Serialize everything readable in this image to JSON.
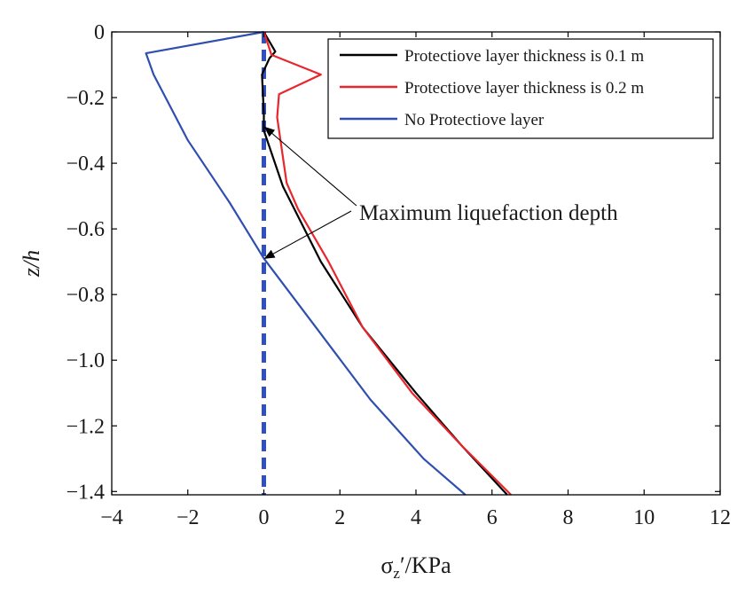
{
  "chart_data": {
    "type": "line",
    "xlabel": "σz′/KPa",
    "xlabel_main": "σ",
    "xlabel_sub": "z",
    "xlabel_rest": "′/KPa",
    "ylabel": "z/h",
    "xlim": [
      -4,
      12
    ],
    "ylim": [
      -1.41,
      0
    ],
    "x_ticks": [
      -4,
      -2,
      0,
      2,
      4,
      6,
      8,
      10,
      12
    ],
    "y_ticks": [
      0,
      -0.2,
      -0.4,
      -0.6,
      -0.8,
      -1.0,
      -1.2,
      -1.4
    ],
    "x_tick_labels": [
      "−4",
      "−2",
      "0",
      "2",
      "4",
      "6",
      "8",
      "10",
      "12"
    ],
    "y_tick_labels": [
      "0",
      "−0.2",
      "−0.4",
      "−0.6",
      "−0.8",
      "−1.0",
      "−1.2",
      "−1.4"
    ],
    "grid": false,
    "legend_position": "top-right",
    "series": [
      {
        "name": "Protectiove layer thickness is 0.1 m",
        "color": "#000000",
        "x": [
          0,
          0.3,
          0.15,
          -0.05,
          0.0,
          0.0,
          0.5,
          1.5,
          2.6,
          4.0,
          5.2,
          6.4
        ],
        "y": [
          0,
          -0.06,
          -0.08,
          -0.13,
          -0.25,
          -0.3,
          -0.47,
          -0.7,
          -0.9,
          -1.1,
          -1.26,
          -1.41
        ]
      },
      {
        "name": "Protectiove layer thickness is 0.2 m",
        "color": "#e8262d",
        "x": [
          0,
          0.2,
          1.5,
          0.4,
          0.35,
          0.6,
          0.9,
          1.7,
          2.6,
          3.9,
          5.2,
          6.5
        ],
        "y": [
          0,
          -0.07,
          -0.13,
          -0.19,
          -0.26,
          -0.46,
          -0.54,
          -0.7,
          -0.9,
          -1.1,
          -1.26,
          -1.41
        ]
      },
      {
        "name": "No Protectiove layer",
        "color": "#2f4fb0",
        "x": [
          0,
          -3.1,
          -2.9,
          -2.0,
          -0.9,
          0.0,
          1.5,
          2.8,
          4.2,
          5.3
        ],
        "y": [
          0,
          -0.065,
          -0.13,
          -0.33,
          -0.52,
          -0.69,
          -0.92,
          -1.12,
          -1.3,
          -1.41
        ]
      }
    ],
    "reference_line": {
      "x": 0,
      "color": "#3050c0",
      "style": "dashed"
    },
    "annotation": {
      "text": "Maximum liquefaction depth",
      "targets": [
        {
          "x": 0,
          "y": -0.29
        },
        {
          "x": 0,
          "y": -0.69
        }
      ]
    }
  }
}
